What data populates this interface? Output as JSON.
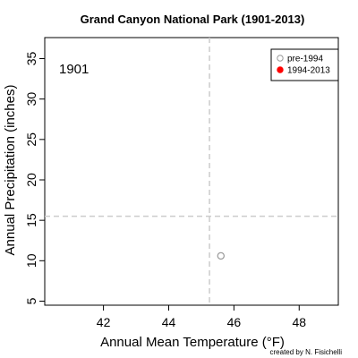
{
  "chart_data": {
    "type": "scatter",
    "title": "Grand Canyon National Park (1901-2013)",
    "xlabel": "Annual Mean Temperature (°F)",
    "ylabel": "Annual Precipitation (inches)",
    "xlim": [
      40.2,
      49.2
    ],
    "ylim": [
      4.5,
      37.6
    ],
    "x_ticks": [
      42,
      44,
      46,
      48
    ],
    "y_ticks": [
      5,
      10,
      15,
      20,
      25,
      30,
      35
    ],
    "grid": false,
    "reference_lines": {
      "x": 45.25,
      "y": 15.5
    },
    "year_label": "1901",
    "legend_position": "top-right",
    "series": [
      {
        "name": "pre-1994",
        "color": "#999999",
        "marker": "open-circle",
        "points": [
          {
            "x": 45.6,
            "y": 10.6
          }
        ]
      },
      {
        "name": "1994-2013",
        "color": "#ff0000",
        "marker": "filled-circle",
        "points": []
      }
    ],
    "credit": "created by N. Fisichelli"
  }
}
